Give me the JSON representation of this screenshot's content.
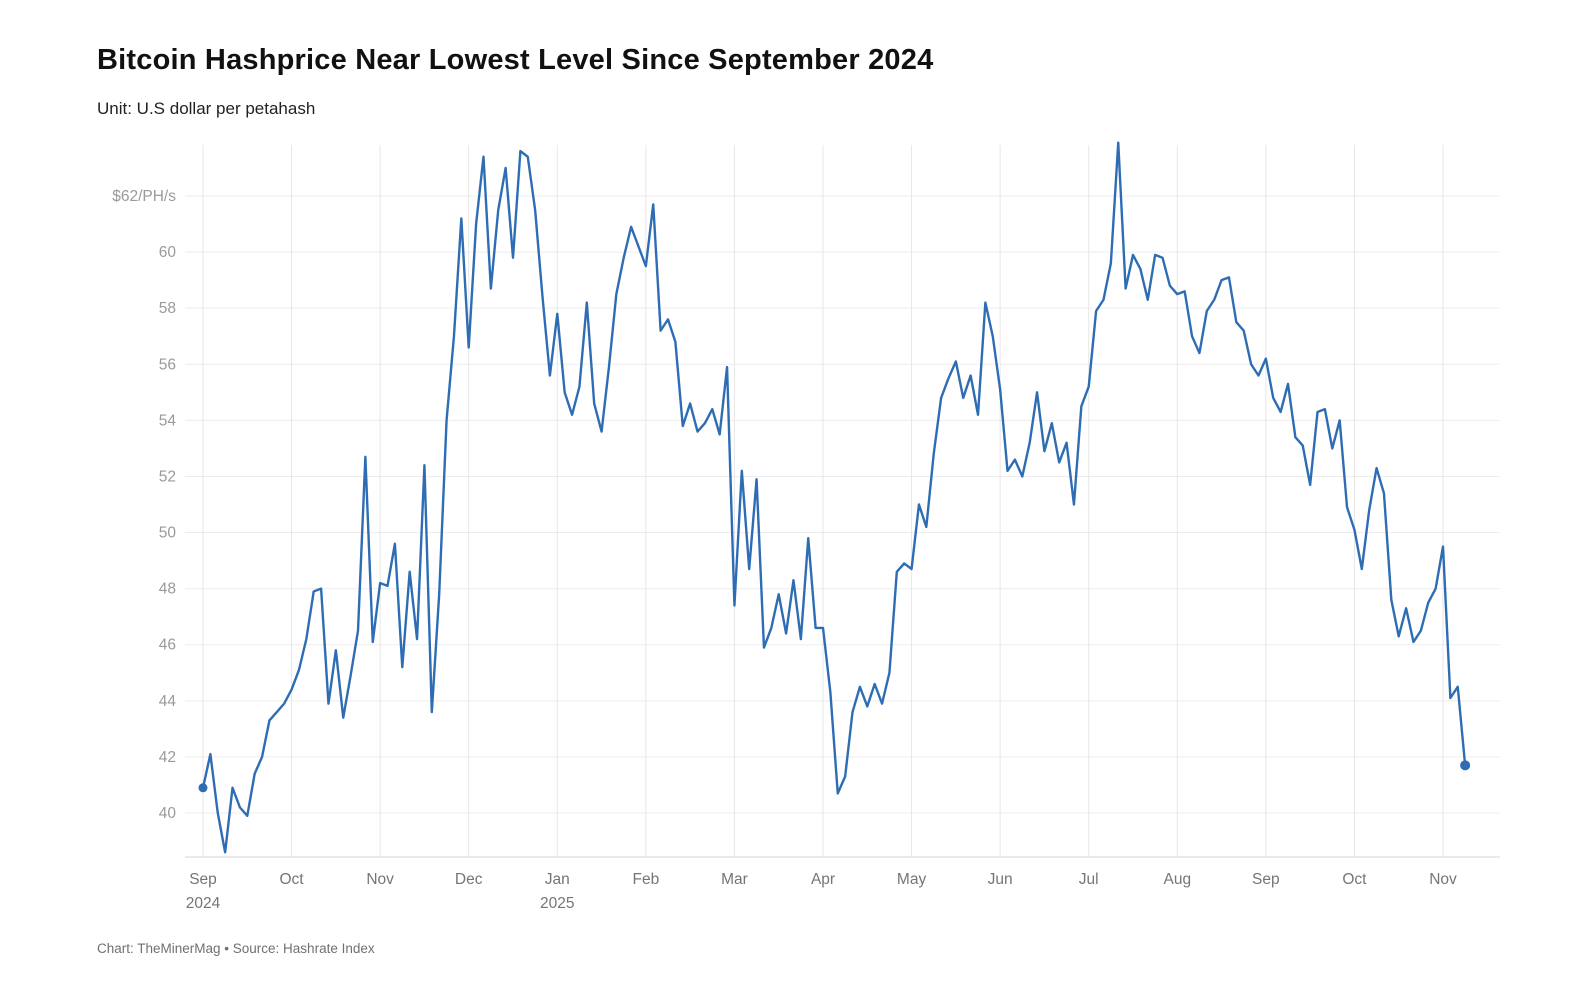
{
  "header": {
    "title": "Bitcoin Hashprice Near Lowest Level Since September 2024",
    "subtitle": "Unit: U.S dollar per petahash"
  },
  "footer": {
    "attribution": "Chart: TheMinerMag • Source: Hashrate Index"
  },
  "chart_data": {
    "type": "line",
    "title": "Bitcoin Hashprice Near Lowest Level Since September 2024",
    "unit": "U.S dollar per petahash",
    "line_color": "#2e6db4",
    "gridline_color": "#ededed",
    "month_gridline_color": "#e7e7e7",
    "baseline_color": "#d6d6d6",
    "y_label_color": "#9a9a9a",
    "x_label_color": "#757575",
    "legend_position": "none",
    "grid": "on",
    "ylim": [
      38.2,
      64.1
    ],
    "y_ticks": [
      {
        "v": 40,
        "label": "40"
      },
      {
        "v": 42,
        "label": "42"
      },
      {
        "v": 44,
        "label": "44"
      },
      {
        "v": 46,
        "label": "46"
      },
      {
        "v": 48,
        "label": "48"
      },
      {
        "v": 50,
        "label": "50"
      },
      {
        "v": 52,
        "label": "52"
      },
      {
        "v": 54,
        "label": "54"
      },
      {
        "v": 56,
        "label": "56"
      },
      {
        "v": 58,
        "label": "58"
      },
      {
        "v": 60,
        "label": "60"
      },
      {
        "v": 62,
        "label": "$62/PH/s"
      }
    ],
    "x_ticks": [
      {
        "label": "Sep",
        "sublabel": "2024"
      },
      {
        "label": "Oct",
        "sublabel": ""
      },
      {
        "label": "Nov",
        "sublabel": ""
      },
      {
        "label": "Dec",
        "sublabel": ""
      },
      {
        "label": "Jan",
        "sublabel": "2025"
      },
      {
        "label": "Feb",
        "sublabel": ""
      },
      {
        "label": "Mar",
        "sublabel": ""
      },
      {
        "label": "Apr",
        "sublabel": ""
      },
      {
        "label": "May",
        "sublabel": ""
      },
      {
        "label": "Jun",
        "sublabel": ""
      },
      {
        "label": "Jul",
        "sublabel": ""
      },
      {
        "label": "Aug",
        "sublabel": ""
      },
      {
        "label": "Sep",
        "sublabel": ""
      },
      {
        "label": "Oct",
        "sublabel": ""
      },
      {
        "label": "Nov",
        "sublabel": ""
      }
    ],
    "points_per_month": 12,
    "series": [
      {
        "name": "Bitcoin hashprice ($/PH/s)",
        "values": [
          40.9,
          42.1,
          40.0,
          38.6,
          40.9,
          40.2,
          39.9,
          41.4,
          42.0,
          43.3,
          43.6,
          43.9,
          44.4,
          45.1,
          46.2,
          47.9,
          48.0,
          43.9,
          45.8,
          43.4,
          44.9,
          46.5,
          52.7,
          46.1,
          48.2,
          48.1,
          49.6,
          45.2,
          48.6,
          46.2,
          52.4,
          43.6,
          47.8,
          54.0,
          57.0,
          61.2,
          56.6,
          61.0,
          63.4,
          58.7,
          61.5,
          63.0,
          59.8,
          63.6,
          63.4,
          61.5,
          58.4,
          55.6,
          57.8,
          55.0,
          54.2,
          55.2,
          58.2,
          54.6,
          53.6,
          55.9,
          58.5,
          59.8,
          60.9,
          60.2,
          59.5,
          61.7,
          57.2,
          57.6,
          56.8,
          53.8,
          54.6,
          53.6,
          53.9,
          54.4,
          53.5,
          55.9,
          47.4,
          52.2,
          48.7,
          51.9,
          45.9,
          46.6,
          47.8,
          46.4,
          48.3,
          46.2,
          49.8,
          46.6,
          46.6,
          44.3,
          40.7,
          41.3,
          43.6,
          44.5,
          43.8,
          44.6,
          43.9,
          45.0,
          48.6,
          48.9,
          48.7,
          51.0,
          50.2,
          52.8,
          54.8,
          55.5,
          56.1,
          54.8,
          55.6,
          54.2,
          58.2,
          57.0,
          55.1,
          52.2,
          52.6,
          52.0,
          53.2,
          55.0,
          52.9,
          53.9,
          52.5,
          53.2,
          51.0,
          54.5,
          55.2,
          57.9,
          58.3,
          59.6,
          63.9,
          58.7,
          59.9,
          59.4,
          58.3,
          59.9,
          59.8,
          58.8,
          58.5,
          58.6,
          57.0,
          56.4,
          57.9,
          58.3,
          59.0,
          59.1,
          57.5,
          57.2,
          56.0,
          55.6,
          56.2,
          54.8,
          54.3,
          55.3,
          53.4,
          53.1,
          51.7,
          54.3,
          54.4,
          53.0,
          54.0,
          50.9,
          50.1,
          48.7,
          50.8,
          52.3,
          51.4,
          47.6,
          46.3,
          47.3,
          46.1,
          46.5,
          47.5,
          48.0,
          49.5,
          44.1,
          44.5,
          41.7
        ]
      }
    ],
    "markers": {
      "start_point": true,
      "end_point": true
    }
  }
}
